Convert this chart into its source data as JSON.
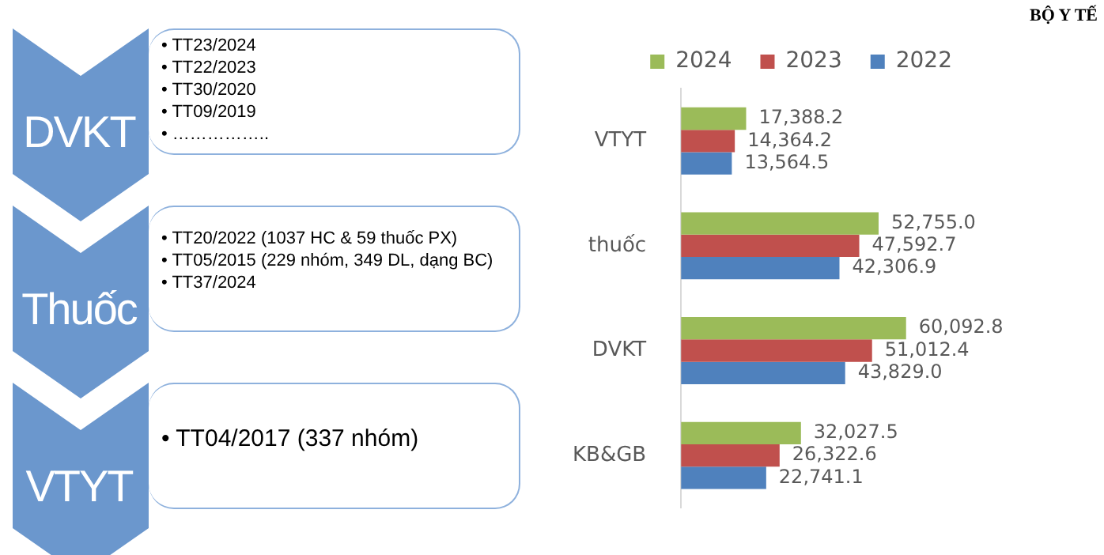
{
  "chart_data": {
    "type": "bar",
    "orientation": "horizontal",
    "categories": [
      "VTYT",
      "thuốc",
      "DVKT",
      "KB&GB"
    ],
    "series": [
      {
        "name": "2024",
        "color": "#9bbb59",
        "values": [
          17388.2,
          52755.0,
          60092.8,
          32027.5
        ],
        "value_labels": [
          "17,388.2",
          "52,755.0",
          "60,092.8",
          "32,027.5"
        ]
      },
      {
        "name": "2023",
        "color": "#c0504d",
        "values": [
          14364.2,
          47592.7,
          51012.4,
          26322.6
        ],
        "value_labels": [
          "14,364.2",
          "47,592.7",
          "51,012.4",
          "26,322.6"
        ]
      },
      {
        "name": "2022",
        "color": "#4f81bd",
        "values": [
          13564.5,
          42306.9,
          43829.0,
          22741.1
        ],
        "value_labels": [
          "13,564.5",
          "42,306.9",
          "43,829.0",
          "22,741.1"
        ]
      }
    ],
    "legend": "top",
    "grid": false,
    "tick_labels": "y",
    "annotations": [
      "DVKT",
      "• TT23/2024\n• TT22/2023\n• TT30/2020\n• TT09/2019\n• ……………..",
      "Thuốc",
      "• TT20/2022 (1037 HC & 59 thuốc PX)\n• TT05/2015 (229 nhóm, 349 DL, dạng BC)\n• TT37/2024",
      "VTYT",
      "• TT04/2017 (337 nhóm)",
      "BỘ Y TẾ"
    ]
  }
}
